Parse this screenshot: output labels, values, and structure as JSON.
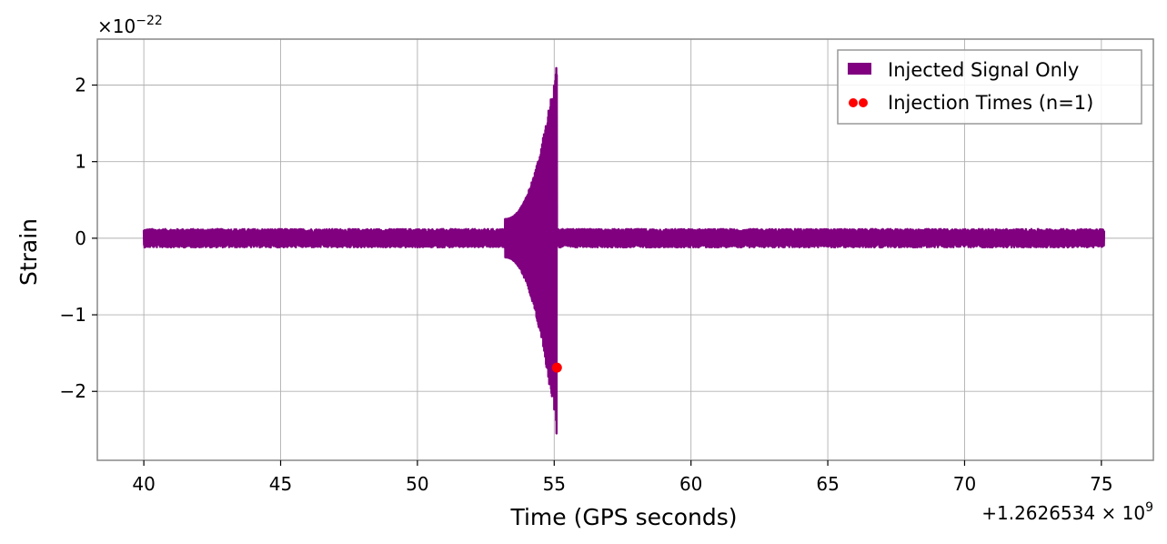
{
  "chart_data": {
    "type": "line",
    "xlabel": "Time (GPS seconds)",
    "ylabel": "Strain",
    "x_offset_label": "+1.2626534 × 10",
    "x_offset_exponent": "9",
    "y_multiplier_label": "×10",
    "y_multiplier_exponent": "−22",
    "xlim": [
      38.3,
      76.9
    ],
    "ylim": [
      -2.9,
      2.6
    ],
    "x_ticks": [
      40,
      45,
      50,
      55,
      60,
      65,
      70,
      75
    ],
    "x_tick_labels": [
      "40",
      "45",
      "50",
      "55",
      "60",
      "65",
      "70",
      "75"
    ],
    "y_ticks": [
      2,
      1,
      0,
      -1,
      -2
    ],
    "y_tick_labels": [
      "2",
      "1",
      "0",
      "−1",
      "−2"
    ],
    "grid": true,
    "legend_position": "top-right",
    "series": [
      {
        "name": "Injected Signal Only",
        "color": "#800080",
        "description_points": {
          "x_start": 40.0,
          "x_end": 75.1,
          "noise_amplitude": 0.12,
          "chirp_start": 53.2,
          "merger_time": 55.1,
          "peak_max": 2.35,
          "peak_min": -2.65
        }
      },
      {
        "name": "Injection Times (n=1)",
        "color": "#ff0000",
        "points": [
          {
            "x": 55.1,
            "y": -1.69
          }
        ]
      }
    ]
  }
}
